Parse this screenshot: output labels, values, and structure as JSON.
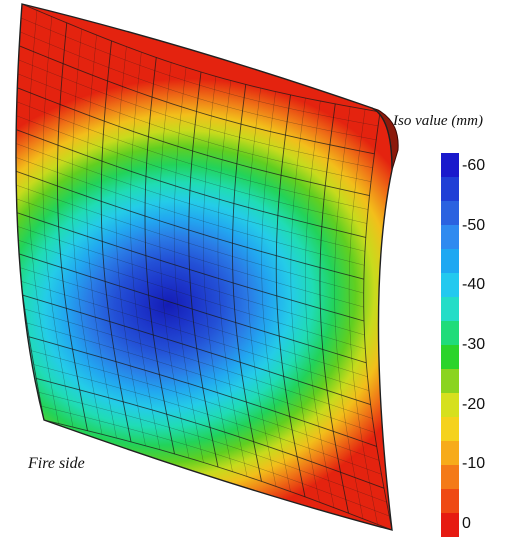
{
  "legend": {
    "title": "Iso value (mm)",
    "ticks": [
      "-60",
      "-50",
      "-40",
      "-30",
      "-20",
      "-10",
      "0"
    ],
    "colors": [
      "#1a1acc",
      "#1f3fd6",
      "#2b62e0",
      "#2f8af0",
      "#1ea8f2",
      "#22c9ef",
      "#23ddc7",
      "#1fdc7a",
      "#2bd42b",
      "#8ad41f",
      "#d6e01e",
      "#f5d21c",
      "#f7ab1a",
      "#f47a18",
      "#ef4a14",
      "#e61b12"
    ]
  },
  "annotation": {
    "fire_side": "Fire side"
  },
  "surface": {
    "center_color": "#1d2fb8",
    "edge_color": "#e42b12",
    "mesh_color": "#1a1a1a"
  }
}
